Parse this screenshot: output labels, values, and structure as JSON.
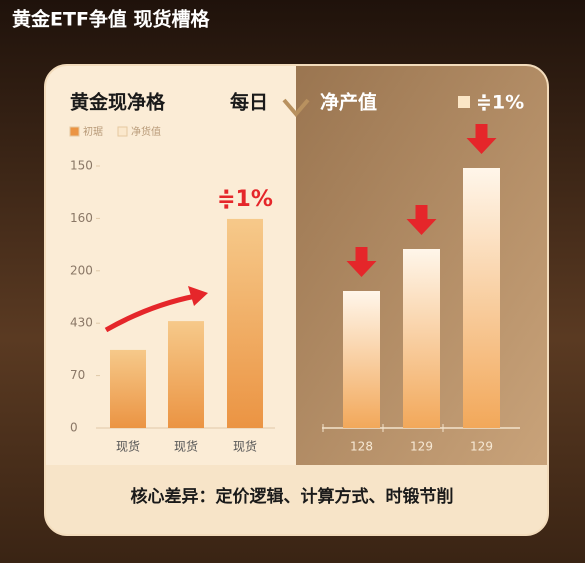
{
  "title": "黄金ETF争值 现货槽格",
  "footer": "核心差异：定价逻辑、计算方式、时锻节削",
  "chart_data": [
    {
      "type": "bar",
      "title": "黄金现净格",
      "subtitle": "每日",
      "legend": [
        "初琚",
        "净货值"
      ],
      "annotation": "≑1%",
      "categories": [
        "现货",
        "现货",
        "现货"
      ],
      "values": [
        1.49,
        2.04,
        3.99
      ],
      "color": "#eb9443",
      "ylim": [
        0,
        5
      ],
      "yticks": [
        {
          "value": 0,
          "label": "0"
        },
        {
          "value": 1,
          "label": "70"
        },
        {
          "value": 2,
          "label": "430"
        },
        {
          "value": 3,
          "label": "200"
        },
        {
          "value": 4,
          "label": "160"
        },
        {
          "value": 5,
          "label": "150"
        }
      ]
    },
    {
      "type": "bar",
      "title": "净产值",
      "legend": [
        "≑1%"
      ],
      "categories": [
        "128",
        "129",
        "129"
      ],
      "values": [
        137,
        179,
        260
      ],
      "color": "#f2a85a",
      "ylim": [
        0,
        300
      ]
    }
  ]
}
